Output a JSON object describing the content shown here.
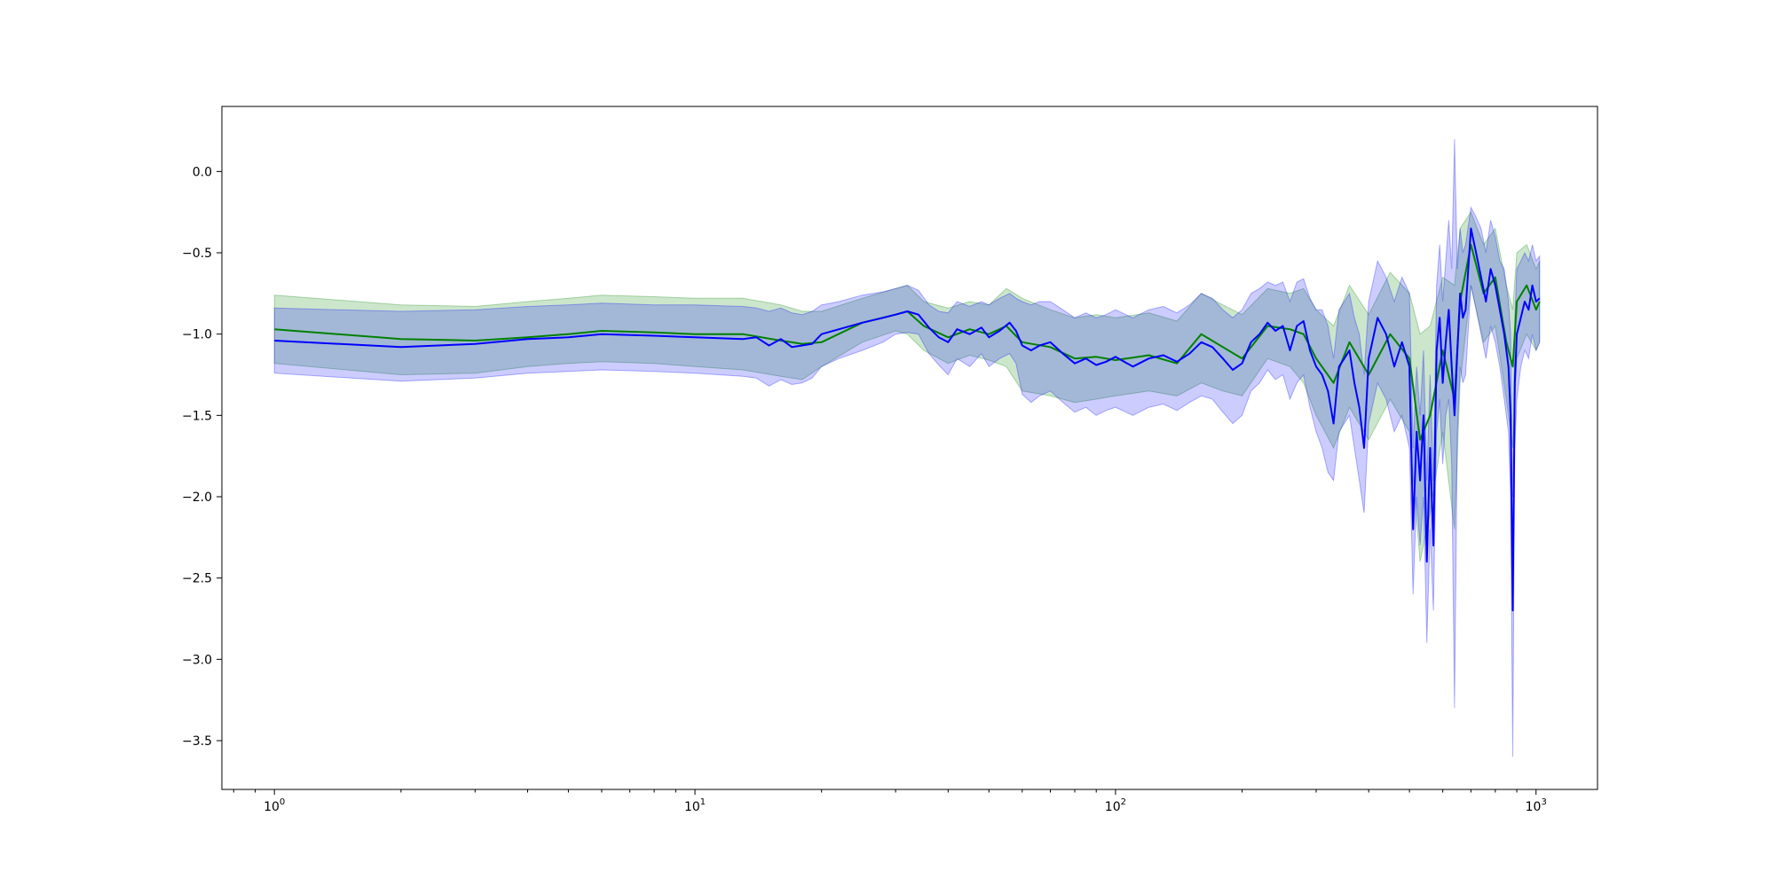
{
  "chart_data": {
    "type": "line",
    "title": "",
    "xlabel": "",
    "ylabel": "",
    "x_scale": "log",
    "xlim": [
      0.75,
      1400
    ],
    "ylim": [
      -3.8,
      0.4
    ],
    "grid": false,
    "legend": "none",
    "x_ticks": [
      {
        "value": 1,
        "base": "10",
        "exp": "0"
      },
      {
        "value": 10,
        "base": "10",
        "exp": "1"
      },
      {
        "value": 100,
        "base": "10",
        "exp": "2"
      },
      {
        "value": 1000,
        "base": "10",
        "exp": "3"
      }
    ],
    "y_ticks": [
      {
        "value": 0.0,
        "label": "0.0"
      },
      {
        "value": -0.5,
        "label": "−0.5"
      },
      {
        "value": -1.0,
        "label": "−1.0"
      },
      {
        "value": -1.5,
        "label": "−1.5"
      },
      {
        "value": -2.0,
        "label": "−2.0"
      },
      {
        "value": -2.5,
        "label": "−2.5"
      },
      {
        "value": -3.0,
        "label": "−3.0"
      },
      {
        "value": -3.5,
        "label": "−3.5"
      }
    ],
    "series": [
      {
        "color": "#008000",
        "band_color": "#008000",
        "band_opacity": 0.2,
        "x": [
          1,
          2,
          3,
          4,
          5,
          6,
          8,
          10,
          13,
          16,
          18,
          20,
          25,
          30,
          32,
          35,
          40,
          45,
          50,
          55,
          60,
          70,
          80,
          90,
          100,
          120,
          140,
          160,
          180,
          200,
          230,
          260,
          280,
          300,
          330,
          360,
          400,
          450,
          500,
          530,
          560,
          600,
          640,
          660,
          700,
          750,
          800,
          850,
          880,
          900,
          950,
          1000,
          1020
        ],
        "y": [
          -0.97,
          -1.03,
          -1.04,
          -1.02,
          -1.0,
          -0.98,
          -0.99,
          -1.0,
          -1.0,
          -1.04,
          -1.06,
          -1.05,
          -0.93,
          -0.88,
          -0.86,
          -0.95,
          -1.02,
          -0.97,
          -1.0,
          -0.95,
          -1.05,
          -1.08,
          -1.15,
          -1.14,
          -1.16,
          -1.13,
          -1.18,
          -1.0,
          -1.08,
          -1.15,
          -0.95,
          -0.97,
          -1.0,
          -1.15,
          -1.3,
          -1.05,
          -1.25,
          -1.0,
          -1.15,
          -1.65,
          -1.5,
          -1.1,
          -1.4,
          -0.8,
          -0.45,
          -0.75,
          -0.65,
          -1.05,
          -1.2,
          -0.8,
          -0.7,
          -0.85,
          -0.8
        ],
        "lower": [
          -1.18,
          -1.25,
          -1.24,
          -1.2,
          -1.18,
          -1.17,
          -1.18,
          -1.2,
          -1.22,
          -1.26,
          -1.28,
          -1.2,
          -1.05,
          -0.98,
          -1.0,
          -1.1,
          -1.18,
          -1.13,
          -1.16,
          -1.2,
          -1.35,
          -1.38,
          -1.42,
          -1.4,
          -1.38,
          -1.35,
          -1.38,
          -1.3,
          -1.35,
          -1.38,
          -1.15,
          -1.2,
          -1.3,
          -1.5,
          -1.7,
          -1.45,
          -1.65,
          -1.4,
          -1.6,
          -2.4,
          -2.1,
          -1.6,
          -2.2,
          -1.3,
          -0.7,
          -1.05,
          -0.95,
          -1.4,
          -1.7,
          -1.15,
          -1.0,
          -1.1,
          -1.05
        ],
        "upper": [
          -0.76,
          -0.82,
          -0.83,
          -0.8,
          -0.78,
          -0.76,
          -0.77,
          -0.78,
          -0.78,
          -0.82,
          -0.86,
          -0.86,
          -0.78,
          -0.72,
          -0.7,
          -0.8,
          -0.84,
          -0.8,
          -0.82,
          -0.72,
          -0.78,
          -0.85,
          -0.9,
          -0.88,
          -0.9,
          -0.87,
          -0.92,
          -0.75,
          -0.82,
          -0.88,
          -0.72,
          -0.75,
          -0.72,
          -0.85,
          -0.95,
          -0.7,
          -0.88,
          -0.62,
          -0.75,
          -1.0,
          -0.95,
          -0.65,
          -0.7,
          -0.35,
          -0.25,
          -0.45,
          -0.35,
          -0.7,
          -0.85,
          -0.5,
          -0.45,
          -0.6,
          -0.55
        ]
      },
      {
        "color": "#0000ff",
        "band_color": "#0000ff",
        "band_opacity": 0.2,
        "x": [
          1,
          2,
          3,
          4,
          5,
          6,
          8,
          10,
          13,
          14,
          15,
          16,
          17,
          18,
          19,
          20,
          22,
          25,
          28,
          30,
          32,
          34,
          36,
          38,
          40,
          42,
          45,
          48,
          50,
          53,
          56,
          58,
          60,
          63,
          66,
          70,
          75,
          80,
          85,
          90,
          95,
          100,
          110,
          120,
          130,
          140,
          150,
          160,
          170,
          180,
          190,
          200,
          210,
          220,
          230,
          240,
          250,
          260,
          270,
          280,
          290,
          300,
          310,
          320,
          330,
          340,
          350,
          360,
          370,
          380,
          390,
          400,
          420,
          440,
          460,
          480,
          500,
          510,
          520,
          530,
          540,
          550,
          560,
          570,
          580,
          590,
          600,
          610,
          620,
          630,
          640,
          650,
          660,
          670,
          680,
          700,
          720,
          740,
          760,
          780,
          800,
          820,
          840,
          860,
          870,
          880,
          890,
          900,
          920,
          940,
          960,
          980,
          1000,
          1020
        ],
        "y": [
          -1.04,
          -1.08,
          -1.06,
          -1.03,
          -1.02,
          -1.0,
          -1.01,
          -1.02,
          -1.03,
          -1.02,
          -1.07,
          -1.03,
          -1.08,
          -1.07,
          -1.06,
          -1.0,
          -0.97,
          -0.93,
          -0.9,
          -0.88,
          -0.86,
          -0.88,
          -0.96,
          -1.02,
          -1.05,
          -0.97,
          -1.0,
          -0.96,
          -1.02,
          -0.98,
          -0.93,
          -0.98,
          -1.07,
          -1.1,
          -1.07,
          -1.05,
          -1.12,
          -1.18,
          -1.15,
          -1.19,
          -1.17,
          -1.14,
          -1.2,
          -1.15,
          -1.13,
          -1.17,
          -1.12,
          -1.05,
          -1.08,
          -1.15,
          -1.22,
          -1.18,
          -1.05,
          -1.0,
          -0.93,
          -0.98,
          -0.95,
          -1.1,
          -0.95,
          -0.92,
          -1.1,
          -1.2,
          -1.25,
          -1.35,
          -1.55,
          -1.2,
          -1.15,
          -1.1,
          -1.3,
          -1.45,
          -1.7,
          -1.15,
          -0.9,
          -1.0,
          -1.2,
          -1.05,
          -1.2,
          -2.2,
          -1.6,
          -1.9,
          -1.5,
          -2.4,
          -1.7,
          -2.3,
          -1.1,
          -0.9,
          -1.3,
          -1.05,
          -0.85,
          -1.2,
          -1.5,
          -1.1,
          -0.75,
          -0.9,
          -0.85,
          -0.35,
          -0.5,
          -0.65,
          -0.8,
          -0.6,
          -0.7,
          -0.85,
          -1.0,
          -1.2,
          -1.5,
          -2.7,
          -1.3,
          -1.0,
          -0.9,
          -0.8,
          -0.85,
          -0.7,
          -0.8,
          -0.78
        ],
        "lower": [
          -1.24,
          -1.29,
          -1.27,
          -1.24,
          -1.23,
          -1.22,
          -1.23,
          -1.24,
          -1.26,
          -1.27,
          -1.32,
          -1.28,
          -1.31,
          -1.3,
          -1.27,
          -1.2,
          -1.15,
          -1.1,
          -1.05,
          -1.0,
          -0.99,
          -1.0,
          -1.12,
          -1.19,
          -1.25,
          -1.15,
          -1.2,
          -1.12,
          -1.2,
          -1.15,
          -1.12,
          -1.18,
          -1.37,
          -1.42,
          -1.38,
          -1.35,
          -1.42,
          -1.48,
          -1.45,
          -1.5,
          -1.47,
          -1.45,
          -1.5,
          -1.45,
          -1.43,
          -1.47,
          -1.42,
          -1.38,
          -1.4,
          -1.48,
          -1.55,
          -1.5,
          -1.35,
          -1.3,
          -1.22,
          -1.28,
          -1.25,
          -1.4,
          -1.3,
          -1.25,
          -1.45,
          -1.6,
          -1.7,
          -1.85,
          -1.9,
          -1.6,
          -1.55,
          -1.5,
          -1.7,
          -1.9,
          -2.1,
          -1.55,
          -1.3,
          -1.4,
          -1.6,
          -1.5,
          -1.7,
          -2.6,
          -2.0,
          -2.3,
          -2.0,
          -2.9,
          -2.2,
          -2.7,
          -1.6,
          -1.4,
          -1.8,
          -1.5,
          -1.4,
          -1.8,
          -3.3,
          -1.6,
          -1.2,
          -1.3,
          -1.25,
          -0.7,
          -0.85,
          -1.0,
          -1.15,
          -0.95,
          -1.05,
          -1.2,
          -1.4,
          -1.6,
          -2.0,
          -3.6,
          -1.7,
          -1.4,
          -1.2,
          -1.1,
          -1.15,
          -1.0,
          -1.1,
          -1.05
        ],
        "upper": [
          -0.84,
          -0.86,
          -0.85,
          -0.83,
          -0.82,
          -0.81,
          -0.82,
          -0.82,
          -0.83,
          -0.84,
          -0.86,
          -0.84,
          -0.87,
          -0.88,
          -0.86,
          -0.82,
          -0.8,
          -0.76,
          -0.74,
          -0.72,
          -0.7,
          -0.73,
          -0.82,
          -0.86,
          -0.87,
          -0.8,
          -0.83,
          -0.8,
          -0.82,
          -0.78,
          -0.75,
          -0.78,
          -0.8,
          -0.82,
          -0.8,
          -0.8,
          -0.85,
          -0.9,
          -0.87,
          -0.9,
          -0.88,
          -0.85,
          -0.9,
          -0.85,
          -0.83,
          -0.87,
          -0.82,
          -0.75,
          -0.78,
          -0.85,
          -0.9,
          -0.85,
          -0.75,
          -0.72,
          -0.68,
          -0.7,
          -0.68,
          -0.8,
          -0.68,
          -0.66,
          -0.78,
          -0.85,
          -0.85,
          -0.95,
          -1.15,
          -0.85,
          -0.8,
          -0.75,
          -0.9,
          -1.0,
          -1.25,
          -0.8,
          -0.55,
          -0.65,
          -0.8,
          -0.65,
          -0.75,
          -1.7,
          -1.2,
          -1.5,
          -1.1,
          -1.9,
          -1.25,
          -1.9,
          -0.7,
          -0.45,
          -0.8,
          -0.55,
          -0.3,
          -0.6,
          0.2,
          -0.6,
          -0.35,
          -0.5,
          -0.45,
          -0.22,
          -0.28,
          -0.35,
          -0.5,
          -0.3,
          -0.4,
          -0.55,
          -0.6,
          -0.8,
          -1.0,
          -2.0,
          -0.9,
          -0.6,
          -0.55,
          -0.5,
          -0.55,
          -0.45,
          -0.55,
          -0.52
        ]
      }
    ]
  }
}
